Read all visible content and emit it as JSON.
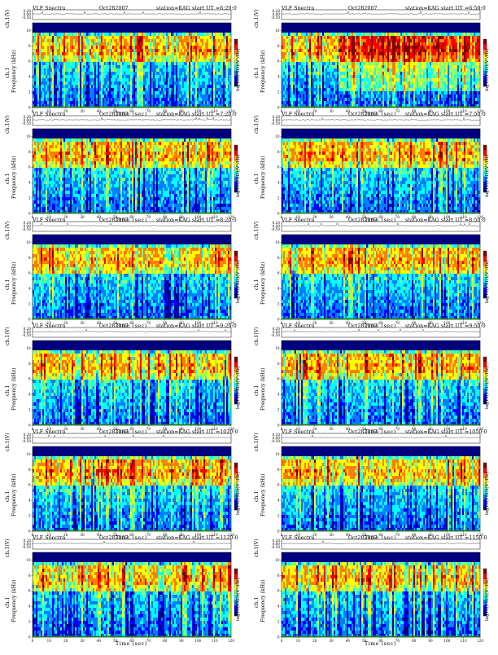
{
  "figure": {
    "title_prefix": "VLF Spectra",
    "date": "Oct282007",
    "station_label": "station=KAG",
    "start_prefix": "start UT ="
  },
  "labels": {
    "ch_ylabel": "ch.1(V)",
    "spec_ylabel": "Frequency (kHz)",
    "spec_ch": "ch.1",
    "xlabel": "Time (sec)",
    "colorbar": "log10(PSD)(V²/Hz)"
  },
  "axes": {
    "x_ticks": [
      "0",
      "10",
      "20",
      "30",
      "40",
      "50",
      "60",
      "70",
      "80",
      "90",
      "100",
      "110",
      "120"
    ],
    "x_range": [
      0,
      120
    ],
    "y_freq_ticks": [
      "0",
      "2",
      "4",
      "6",
      "8",
      "10"
    ],
    "y_freq_range": [
      0,
      11
    ],
    "y_volt_ticks": [
      "0.20",
      "0.00",
      "-0.50"
    ]
  },
  "colors": {
    "cmap": [
      "#00007f",
      "#0000ff",
      "#007fff",
      "#00ffff",
      "#7fff7f",
      "#ffff00",
      "#ff7f00",
      "#ff0000",
      "#7f0000"
    ]
  },
  "chart_data": [
    {
      "type": "heatmap",
      "panel": "6:20:0",
      "start_ut": "6:20:0",
      "dense_after_sec": null
    },
    {
      "type": "heatmap",
      "panel": "6:50:0",
      "start_ut": "6:50:0",
      "dense_after_sec": 34
    },
    {
      "type": "heatmap",
      "panel": "7:20:0",
      "start_ut": "7:20:0",
      "dense_after_sec": null
    },
    {
      "type": "heatmap",
      "panel": "7:50:0",
      "start_ut": "7:50:0",
      "dense_after_sec": null
    },
    {
      "type": "heatmap",
      "panel": "8:20:0",
      "start_ut": "8:20:0",
      "dense_after_sec": null
    },
    {
      "type": "heatmap",
      "panel": "8:50:0",
      "start_ut": "8:50:0",
      "dense_after_sec": null
    },
    {
      "type": "heatmap",
      "panel": "9:20:0",
      "start_ut": "9:20:0",
      "dense_after_sec": null
    },
    {
      "type": "heatmap",
      "panel": "9:50:0",
      "start_ut": "9:50:0",
      "dense_after_sec": null
    },
    {
      "type": "heatmap",
      "panel": "1020:0",
      "start_ut": "1020:0",
      "dense_after_sec": null
    },
    {
      "type": "heatmap",
      "panel": "1050:0",
      "start_ut": "1050:0",
      "dense_after_sec": null
    },
    {
      "type": "heatmap",
      "panel": "1120:0",
      "start_ut": "1120:0",
      "dense_after_sec": null
    },
    {
      "type": "heatmap",
      "panel": "1150:0",
      "start_ut": "1150:0",
      "dense_after_sec": null
    }
  ]
}
